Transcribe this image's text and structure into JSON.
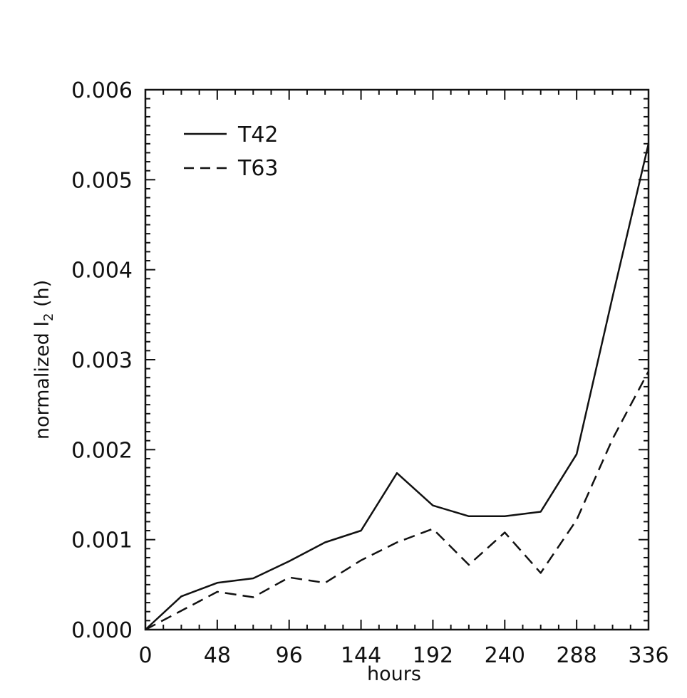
{
  "chart_data": {
    "type": "line",
    "title": "",
    "xlabel": "hours",
    "ylabel_main": "normalized  l",
    "ylabel_sub": "2",
    "ylabel_tail": " (h)",
    "xlim": [
      0,
      336
    ],
    "ylim": [
      0,
      0.006
    ],
    "xticks": [
      0,
      48,
      96,
      144,
      192,
      240,
      288,
      336
    ],
    "xtick_labels": [
      "0",
      "48",
      "96",
      "144",
      "192",
      "240",
      "288",
      "336"
    ],
    "yticks": [
      0,
      0.001,
      0.002,
      0.003,
      0.004,
      0.005,
      0.006
    ],
    "ytick_labels": [
      "0.000",
      "0.001",
      "0.002",
      "0.003",
      "0.004",
      "0.005",
      "0.006"
    ],
    "grid": false,
    "legend_position": "top-left",
    "x": [
      0,
      24,
      48,
      72,
      96,
      120,
      144,
      168,
      192,
      216,
      240,
      264,
      288,
      312,
      336
    ],
    "series": [
      {
        "name": "T42",
        "style": "solid",
        "values": [
          0.0,
          0.00037,
          0.00052,
          0.00057,
          0.00076,
          0.00097,
          0.0011,
          0.00174,
          0.00138,
          0.00126,
          0.00126,
          0.00131,
          0.00195,
          0.0037,
          0.0054
        ]
      },
      {
        "name": "T63",
        "style": "dashed",
        "values": [
          0.0,
          0.00021,
          0.00042,
          0.00036,
          0.00058,
          0.00052,
          0.00077,
          0.00097,
          0.00112,
          0.00072,
          0.00108,
          0.00063,
          0.00122,
          0.00212,
          0.00287
        ]
      }
    ],
    "colors": {
      "line": "#111111",
      "axis": "#111111",
      "background": "#ffffff"
    }
  }
}
